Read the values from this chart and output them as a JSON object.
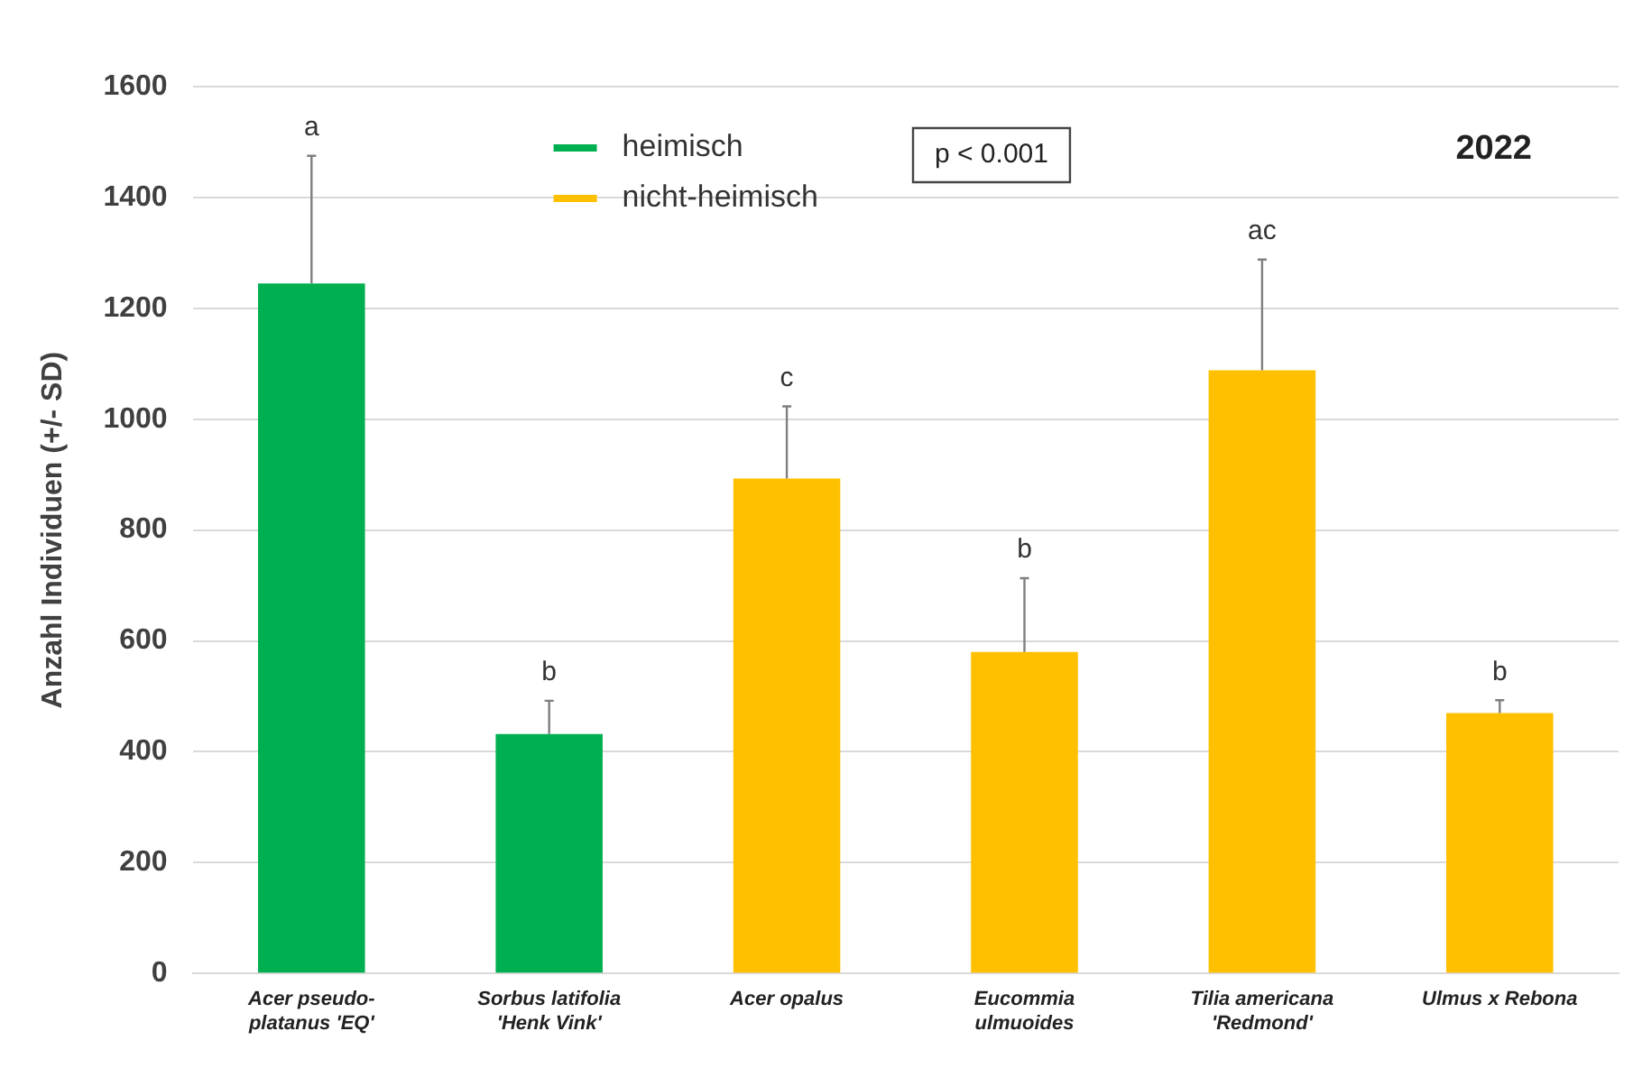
{
  "chart_data": {
    "type": "bar",
    "ylabel": "Anzahl Individuen (+/- SD)",
    "categories": [
      "Acer pseudo-platanus 'EQ'",
      "Sorbus latifolia 'Henk Vink'",
      "Acer opalus",
      "Eucommia ulmuoides",
      "Tilia americana 'Redmond'",
      "Ulmus x Rebona"
    ],
    "series": [
      {
        "name": "heimisch",
        "color": "#00b050",
        "values": [
          1245,
          432,
          null,
          null,
          null,
          null
        ],
        "errors": [
          230,
          60,
          null,
          null,
          null,
          null
        ]
      },
      {
        "name": "nicht-heimisch",
        "color": "#ffc000",
        "values": [
          null,
          null,
          893,
          580,
          1088,
          470
        ],
        "errors": [
          null,
          null,
          130,
          133,
          200,
          23
        ]
      }
    ],
    "ylim": [
      0,
      1600
    ],
    "yticks": [
      0,
      200,
      400,
      600,
      800,
      1000,
      1200,
      1400,
      1600
    ],
    "grid": "y",
    "legend": "top left",
    "annotations": [
      {
        "text": "a",
        "x": "Acer pseudo-platanus 'EQ'",
        "y": 1475
      },
      {
        "text": "b",
        "x": "Sorbus latifolia 'Henk Vink'",
        "y": 492
      },
      {
        "text": "c",
        "x": "Acer opalus",
        "y": 1023
      },
      {
        "text": "b",
        "x": "Eucommia ulmuoides",
        "y": 713
      },
      {
        "text": "ac",
        "x": "Tilia americana 'Redmond'",
        "y": 1288
      },
      {
        "text": "b",
        "x": "Ulmus x Rebona",
        "y": 493
      },
      "p < 0.001",
      "2022"
    ]
  }
}
